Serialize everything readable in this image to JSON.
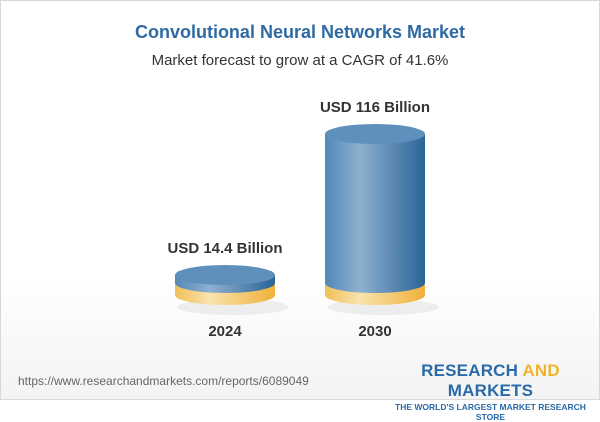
{
  "chart_data": {
    "type": "bar",
    "style": "3d-cylinder",
    "title": "Convolutional Neural Networks Market",
    "subtitle": "Market forecast to grow at a CAGR of 41.6%",
    "categories": [
      "2024",
      "2030"
    ],
    "values": [
      14.4,
      116
    ],
    "unit": "USD Billion",
    "data_labels": [
      "USD 14.4 Billion",
      "USD 116 Billion"
    ],
    "colors": {
      "base": "#f3c35a",
      "bar": "#3f77a8",
      "title": "#2f6aa3"
    }
  },
  "footer": {
    "url": "https://www.researchandmarkets.com/reports/6089049",
    "logo_part1": "RESEARCH ",
    "logo_part2": "AND",
    "logo_part3": " MARKETS",
    "tagline": "THE WORLD'S LARGEST MARKET RESEARCH STORE"
  }
}
